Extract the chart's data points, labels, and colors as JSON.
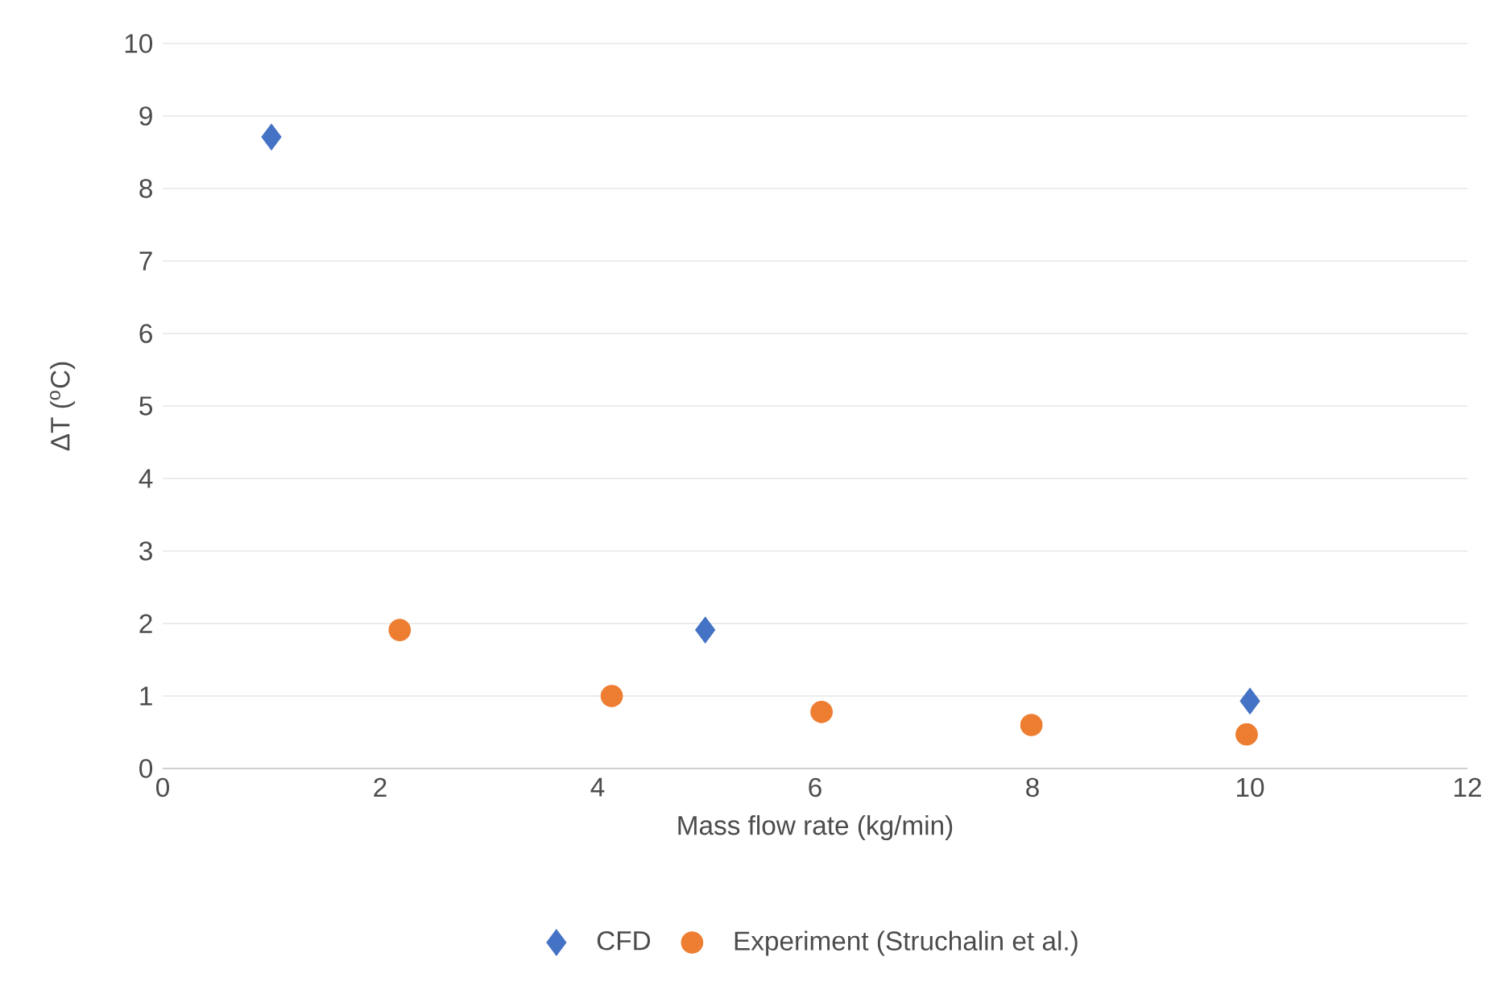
{
  "chart_data": {
    "type": "scatter",
    "xlabel": "Mass flow rate (kg/min)",
    "ylabel": "ΔT ($^{o}$C)",
    "xlim": [
      0,
      12
    ],
    "xticks": [
      0,
      2,
      4,
      6,
      8,
      10,
      12
    ],
    "ylim": [
      0,
      10
    ],
    "yticks": [
      0,
      1,
      2,
      3,
      4,
      5,
      6,
      7,
      8,
      9,
      10
    ],
    "grid": "y",
    "legend": "bottom",
    "series": [
      {
        "name": "CFD",
        "color": "#4472c4",
        "marker": "diamond",
        "x": [
          1.0,
          4.99,
          10.0
        ],
        "values": [
          8.71,
          1.91,
          0.93
        ]
      },
      {
        "name": "Experiment (Struchalin et al.)",
        "color": "#ed7d31",
        "marker": "circle",
        "x": [
          2.18,
          4.13,
          6.06,
          7.99,
          9.97
        ],
        "values": [
          1.91,
          1.0,
          0.78,
          0.6,
          0.47
        ]
      }
    ]
  }
}
